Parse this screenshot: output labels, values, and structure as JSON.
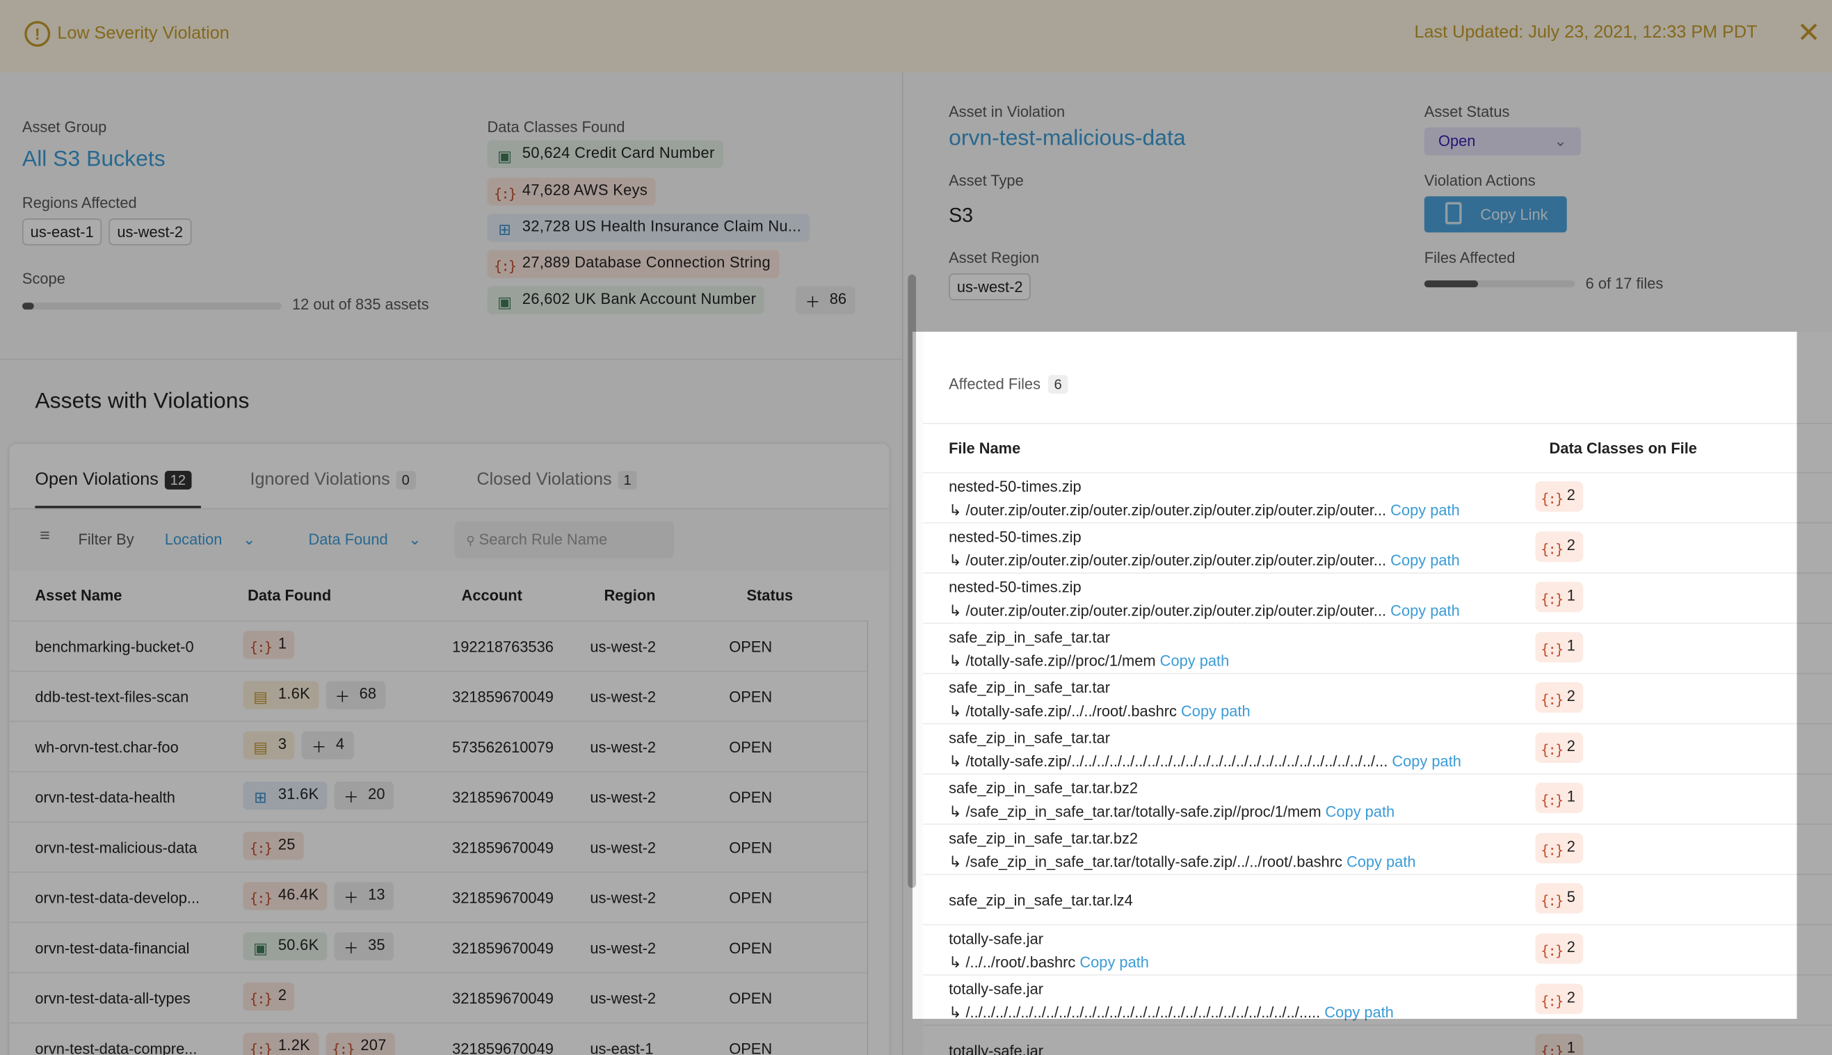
{
  "header": {
    "severity_icon": "exclamation-circle-icon",
    "title": "Low Severity Violation",
    "last_updated": "Last Updated: July 23, 2021, 12:33 PM PDT",
    "close_icon": "close-icon"
  },
  "summary": {
    "asset_group_label": "Asset Group",
    "asset_group": "All S3 Buckets",
    "regions_label": "Regions Affected",
    "regions": [
      "us-east-1",
      "us-west-2"
    ],
    "scope_label": "Scope",
    "scope_text": "12 out of 835 assets",
    "scope_fraction": 0.0144,
    "data_classes_label": "Data Classes Found",
    "data_classes": [
      {
        "icon": "credit-card",
        "text": "50,624 Credit Card Number"
      },
      {
        "icon": "braces",
        "text": "47,628 AWS Keys"
      },
      {
        "icon": "medical-bag",
        "text": "32,728 US Health Insurance Claim Nu..."
      },
      {
        "icon": "braces",
        "text": "27,889 Database Connection String"
      },
      {
        "icon": "credit-card",
        "text": "26,602 UK Bank Account Number"
      }
    ],
    "data_classes_more": "86"
  },
  "assets": {
    "title": "Assets with Violations",
    "tabs": [
      {
        "label": "Open Violations",
        "count": "12"
      },
      {
        "label": "Ignored Violations",
        "count": "0"
      },
      {
        "label": "Closed Violations",
        "count": "1"
      }
    ],
    "filter_label": "Filter By",
    "filter_location": "Location",
    "filter_data": "Data Found",
    "search_placeholder": "Search Rule Name",
    "columns": [
      "Asset Name",
      "Data Found",
      "Account",
      "Region",
      "Status"
    ],
    "rows": [
      {
        "name": "benchmarking-bucket-0",
        "badges": [
          {
            "icon": "braces",
            "value": "1"
          }
        ],
        "more": "",
        "account": "192218763536",
        "region": "us-west-2",
        "status": "OPEN"
      },
      {
        "name": "ddb-test-text-files-scan",
        "badges": [
          {
            "icon": "id-card",
            "value": "1.6K"
          }
        ],
        "more": "68",
        "account": "321859670049",
        "region": "us-west-2",
        "status": "OPEN"
      },
      {
        "name": "wh-orvn-test.char-foo",
        "badges": [
          {
            "icon": "id-card",
            "value": "3"
          }
        ],
        "more": "4",
        "account": "573562610079",
        "region": "us-west-2",
        "status": "OPEN"
      },
      {
        "name": "orvn-test-data-health",
        "badges": [
          {
            "icon": "medical-bag",
            "value": "31.6K"
          }
        ],
        "more": "20",
        "account": "321859670049",
        "region": "us-west-2",
        "status": "OPEN"
      },
      {
        "name": "orvn-test-malicious-data",
        "badges": [
          {
            "icon": "braces",
            "value": "25"
          }
        ],
        "more": "",
        "account": "321859670049",
        "region": "us-west-2",
        "status": "OPEN"
      },
      {
        "name": "orvn-test-data-develop...",
        "badges": [
          {
            "icon": "braces",
            "value": "46.4K"
          }
        ],
        "more": "13",
        "account": "321859670049",
        "region": "us-west-2",
        "status": "OPEN"
      },
      {
        "name": "orvn-test-data-financial",
        "badges": [
          {
            "icon": "credit-card",
            "value": "50.6K"
          }
        ],
        "more": "35",
        "account": "321859670049",
        "region": "us-west-2",
        "status": "OPEN"
      },
      {
        "name": "orvn-test-data-all-types",
        "badges": [
          {
            "icon": "braces",
            "value": "2"
          }
        ],
        "more": "",
        "account": "321859670049",
        "region": "us-west-2",
        "status": "OPEN"
      },
      {
        "name": "orvn-test-data-compre...",
        "badges": [
          {
            "icon": "braces",
            "value": "1.2K"
          },
          {
            "icon": "braces",
            "value": "207"
          }
        ],
        "more": "",
        "account": "321859670049",
        "region": "us-east-1",
        "status": "OPEN"
      }
    ]
  },
  "detail": {
    "asset_label": "Asset in Violation",
    "asset": "orvn-test-malicious-data",
    "status_label": "Asset Status",
    "status": "Open",
    "type_label": "Asset Type",
    "type": "S3",
    "actions_label": "Violation Actions",
    "copy_link": "Copy Link",
    "region_label": "Asset Region",
    "region": "us-west-2",
    "files_label": "Files Affected",
    "files_text": "6 of 17 files",
    "files_fraction": 0.353
  },
  "files": {
    "title": "Affected Files",
    "count": "6",
    "columns": [
      "File Name",
      "Data Classes on File"
    ],
    "copy_label": "Copy path",
    "rows": [
      {
        "name": "nested-50-times.zip",
        "path": "/outer.zip/outer.zip/outer.zip/outer.zip/outer.zip/outer.zip/outer...",
        "count": "2"
      },
      {
        "name": "nested-50-times.zip",
        "path": "/outer.zip/outer.zip/outer.zip/outer.zip/outer.zip/outer.zip/outer...",
        "count": "2"
      },
      {
        "name": "nested-50-times.zip",
        "path": "/outer.zip/outer.zip/outer.zip/outer.zip/outer.zip/outer.zip/outer...",
        "count": "1"
      },
      {
        "name": "safe_zip_in_safe_tar.tar",
        "path": "/totally-safe.zip//proc/1/mem",
        "count": "1"
      },
      {
        "name": "safe_zip_in_safe_tar.tar",
        "path": "/totally-safe.zip/../../root/.bashrc",
        "count": "2"
      },
      {
        "name": "safe_zip_in_safe_tar.tar",
        "path": "/totally-safe.zip/../../../../../../../../../../../../../../../../../../../../../../../../...",
        "count": "2"
      },
      {
        "name": "safe_zip_in_safe_tar.tar.bz2",
        "path": "/safe_zip_in_safe_tar.tar/totally-safe.zip//proc/1/mem",
        "count": "1"
      },
      {
        "name": "safe_zip_in_safe_tar.tar.bz2",
        "path": "/safe_zip_in_safe_tar.tar/totally-safe.zip/../../root/.bashrc",
        "count": "2"
      },
      {
        "name": "safe_zip_in_safe_tar.tar.lz4",
        "path": "",
        "count": "5"
      },
      {
        "name": "totally-safe.jar",
        "path": "/../../root/.bashrc",
        "count": "2"
      },
      {
        "name": "totally-safe.jar",
        "path": "/../../../../../../../../../../../../../../../../../../../../../../../../../../.....",
        "count": "2"
      },
      {
        "name": "totally-safe.jar",
        "path": "",
        "count": "1"
      }
    ]
  }
}
